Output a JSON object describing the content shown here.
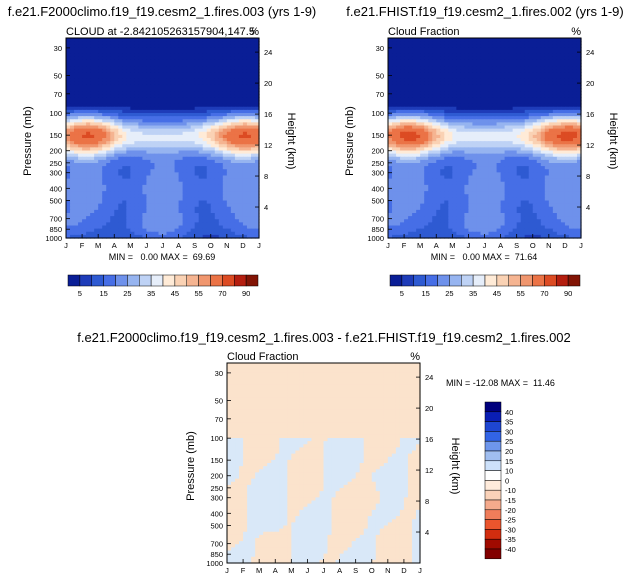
{
  "page": {
    "background": "#ffffff"
  },
  "months": [
    "J",
    "F",
    "M",
    "A",
    "M",
    "J",
    "J",
    "A",
    "S",
    "O",
    "N",
    "D",
    "J"
  ],
  "colorbar_top": {
    "colors": [
      "#0a1e96",
      "#1e3cb9",
      "#2e5ad2",
      "#466ee6",
      "#6e91eb",
      "#96b4f0",
      "#bed2f5",
      "#e6eefa",
      "#ffebd7",
      "#fad2b4",
      "#f5b491",
      "#f0966e",
      "#eb7346",
      "#dc4b23",
      "#b41e0f",
      "#821405"
    ],
    "labels": [
      "5",
      "15",
      "25",
      "35",
      "45",
      "55",
      "70",
      "90"
    ]
  },
  "colorbar_diff": {
    "colors": [
      "#00007d",
      "#0a1eb4",
      "#1e46d2",
      "#3264e6",
      "#6e96ec",
      "#a0bef0",
      "#cde1fa",
      "#ffffff",
      "#ffebdb",
      "#fad2b9",
      "#f5aa8c",
      "#f07d5a",
      "#eb552d",
      "#d22d0f",
      "#a00a00",
      "#820000"
    ],
    "labels": [
      "40",
      "35",
      "30",
      "25",
      "20",
      "15",
      "10",
      "0",
      "-10",
      "-15",
      "-20",
      "-25",
      "-30",
      "-35",
      "-40"
    ]
  },
  "chart_data": [
    {
      "type": "heatmap",
      "title": "f.e21.F2000climo.f19_f19.cesm2_1.fires.003 (yrs 1-9)",
      "left_label": "CLOUD at -2.842105263157904,147.5",
      "right_label": "%",
      "xlabel": "",
      "ylabel": "Pressure (mb)",
      "ylabel_right": "Height (km)",
      "pressure_ticks": [
        30,
        50,
        70,
        100,
        150,
        200,
        250,
        300,
        400,
        500,
        700,
        850,
        1000
      ],
      "height_ticks": [
        24,
        20,
        16,
        12,
        8,
        4
      ],
      "ylim": [
        1000,
        25
      ],
      "stats": "MIN =   0.00 MAX =  69.69",
      "min": 0.0,
      "max": 69.69
    },
    {
      "type": "heatmap",
      "title": "f.e21.FHIST.f19_f19.cesm2_1.fires.002 (yrs 1-9)",
      "left_label": "Cloud Fraction",
      "right_label": "%",
      "xlabel": "",
      "ylabel": "Pressure (mb)",
      "ylabel_right": "Height (km)",
      "pressure_ticks": [
        30,
        50,
        70,
        100,
        150,
        200,
        250,
        300,
        400,
        500,
        700,
        850,
        1000
      ],
      "height_ticks": [
        24,
        20,
        16,
        12,
        8,
        4
      ],
      "ylim": [
        1000,
        25
      ],
      "stats": "MIN =   0.00 MAX =  71.64",
      "min": 0.0,
      "max": 71.64
    },
    {
      "type": "heatmap",
      "title": "f.e21.F2000climo.f19_f19.cesm2_1.fires.003 - f.e21.FHIST.f19_f19.cesm2_1.fires.002",
      "left_label": "Cloud Fraction",
      "right_label": "%",
      "xlabel": "",
      "ylabel": "Pressure (mb)",
      "ylabel_right": "Height (km)",
      "pressure_ticks": [
        30,
        50,
        70,
        100,
        150,
        200,
        250,
        300,
        400,
        500,
        700,
        850,
        1000
      ],
      "height_ticks": [
        24,
        20,
        16,
        12,
        8,
        4
      ],
      "ylim": [
        1000,
        25
      ],
      "stats": "MIN = -12.08 MAX =  11.46",
      "min": -12.08,
      "max": 11.46
    }
  ]
}
